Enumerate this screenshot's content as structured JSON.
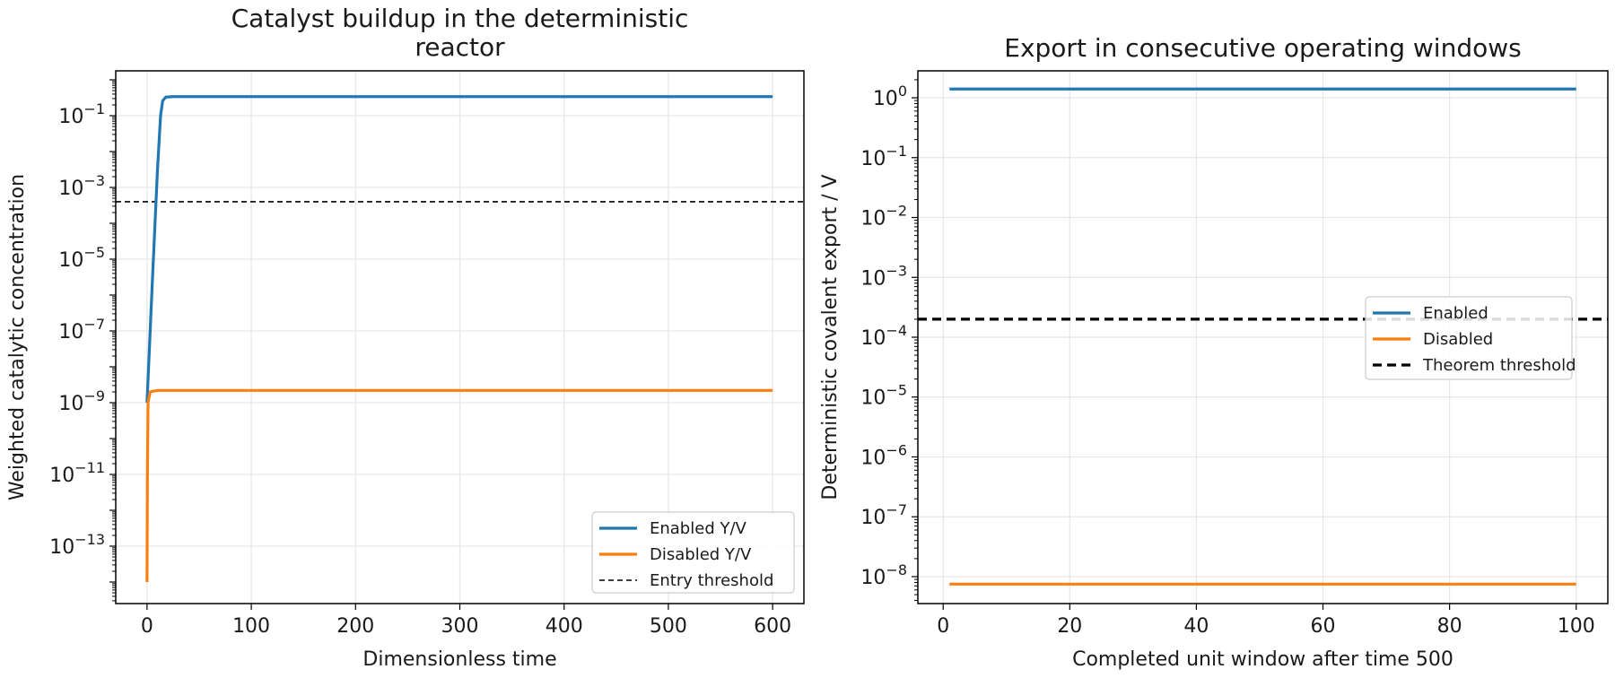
{
  "chart_data": [
    {
      "type": "line",
      "title_lines": [
        "Catalyst buildup in the deterministic",
        "reactor"
      ],
      "xlabel": "Dimensionless time",
      "ylabel": "Weighted catalytic concentration",
      "xlim": [
        -30,
        630
      ],
      "ylim_log10": [
        -14.6,
        0.25
      ],
      "yscale": "log",
      "xticks": [
        0,
        100,
        200,
        300,
        400,
        500,
        600
      ],
      "yticks": [
        {
          "exp": -1,
          "base": "10",
          "sup": "−1"
        },
        {
          "exp": -3,
          "base": "10",
          "sup": "−3"
        },
        {
          "exp": -5,
          "base": "10",
          "sup": "−5"
        },
        {
          "exp": -7,
          "base": "10",
          "sup": "−7"
        },
        {
          "exp": -9,
          "base": "10",
          "sup": "−9"
        },
        {
          "exp": -11,
          "base": "10",
          "sup": "−11"
        },
        {
          "exp": -13,
          "base": "10",
          "sup": "−13"
        }
      ],
      "grid": true,
      "legend_position": "lower right",
      "series": [
        {
          "name": "Enabled Y/V",
          "color": "#1f77b4",
          "style": "solid",
          "points": [
            [
              0,
              1e-09
            ],
            [
              5,
              2e-06
            ],
            [
              10,
              0.003
            ],
            [
              13,
              0.1
            ],
            [
              15,
              0.26
            ],
            [
              18,
              0.33
            ],
            [
              25,
              0.34
            ],
            [
              600,
              0.34
            ]
          ]
        },
        {
          "name": "Disabled Y/V",
          "color": "#ff7f0e",
          "style": "solid",
          "points": [
            [
              0,
              1e-14
            ],
            [
              0.4,
              1e-11
            ],
            [
              1,
              1e-09
            ],
            [
              3,
              2e-09
            ],
            [
              10,
              2.2e-09
            ],
            [
              600,
              2.2e-09
            ]
          ]
        }
      ],
      "hlines": [
        {
          "name": "Entry threshold",
          "y": 0.0004,
          "color": "#000000",
          "style": "dashed-thin"
        }
      ]
    },
    {
      "type": "line",
      "title_lines": [
        "Export in consecutive operating windows"
      ],
      "xlabel": "Completed unit window after time 500",
      "ylabel": "Deterministic covalent export / V",
      "xlim": [
        -4,
        105
      ],
      "ylim_log10": [
        -8.45,
        0.45
      ],
      "yscale": "log",
      "xticks": [
        0,
        20,
        40,
        60,
        80,
        100
      ],
      "yticks": [
        {
          "exp": 0,
          "base": "10",
          "sup": "0"
        },
        {
          "exp": -1,
          "base": "10",
          "sup": "−1"
        },
        {
          "exp": -2,
          "base": "10",
          "sup": "−2"
        },
        {
          "exp": -3,
          "base": "10",
          "sup": "−3"
        },
        {
          "exp": -4,
          "base": "10",
          "sup": "−4"
        },
        {
          "exp": -5,
          "base": "10",
          "sup": "−5"
        },
        {
          "exp": -6,
          "base": "10",
          "sup": "−6"
        },
        {
          "exp": -7,
          "base": "10",
          "sup": "−7"
        },
        {
          "exp": -8,
          "base": "10",
          "sup": "−8"
        }
      ],
      "grid": true,
      "legend_position": "center right",
      "series": [
        {
          "name": "Enabled",
          "color": "#1f77b4",
          "style": "solid",
          "points": [
            [
              1,
              1.4
            ],
            [
              100,
              1.4
            ]
          ]
        },
        {
          "name": "Disabled",
          "color": "#ff7f0e",
          "style": "solid",
          "points": [
            [
              1,
              7.5e-09
            ],
            [
              100,
              7.5e-09
            ]
          ]
        }
      ],
      "hlines": [
        {
          "name": "Theorem threshold",
          "y": 0.0002,
          "color": "#000000",
          "style": "dashed-thick"
        }
      ]
    }
  ]
}
